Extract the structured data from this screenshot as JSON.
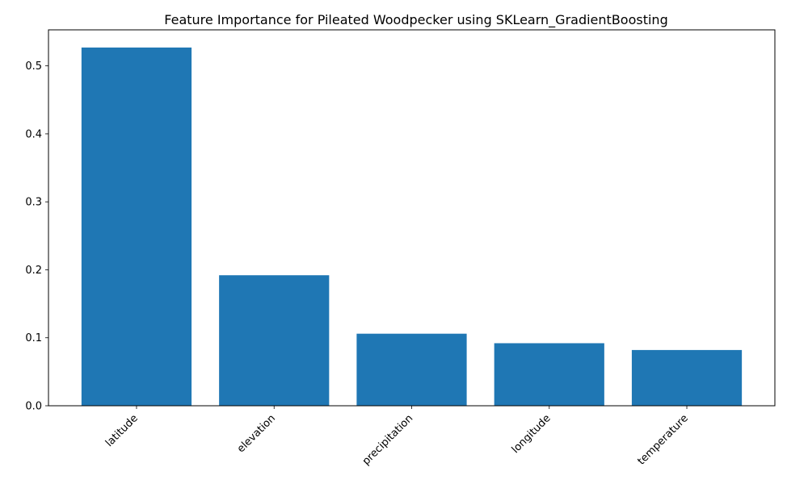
{
  "chart_data": {
    "type": "bar",
    "title": "Feature Importance for Pileated Woodpecker using SKLearn_GradientBoosting",
    "xlabel": "",
    "ylabel": "",
    "categories": [
      "latitude",
      "elevation",
      "precipitation",
      "longitude",
      "temperature"
    ],
    "values": [
      0.527,
      0.192,
      0.106,
      0.092,
      0.082
    ],
    "ylim": [
      0,
      0.553
    ],
    "yticks": [
      0.0,
      0.1,
      0.2,
      0.3,
      0.4,
      0.5
    ],
    "ytick_labels": [
      "0.0",
      "0.1",
      "0.2",
      "0.3",
      "0.4",
      "0.5"
    ],
    "bar_color": "#1f77b4",
    "grid": false,
    "legend": "none"
  }
}
